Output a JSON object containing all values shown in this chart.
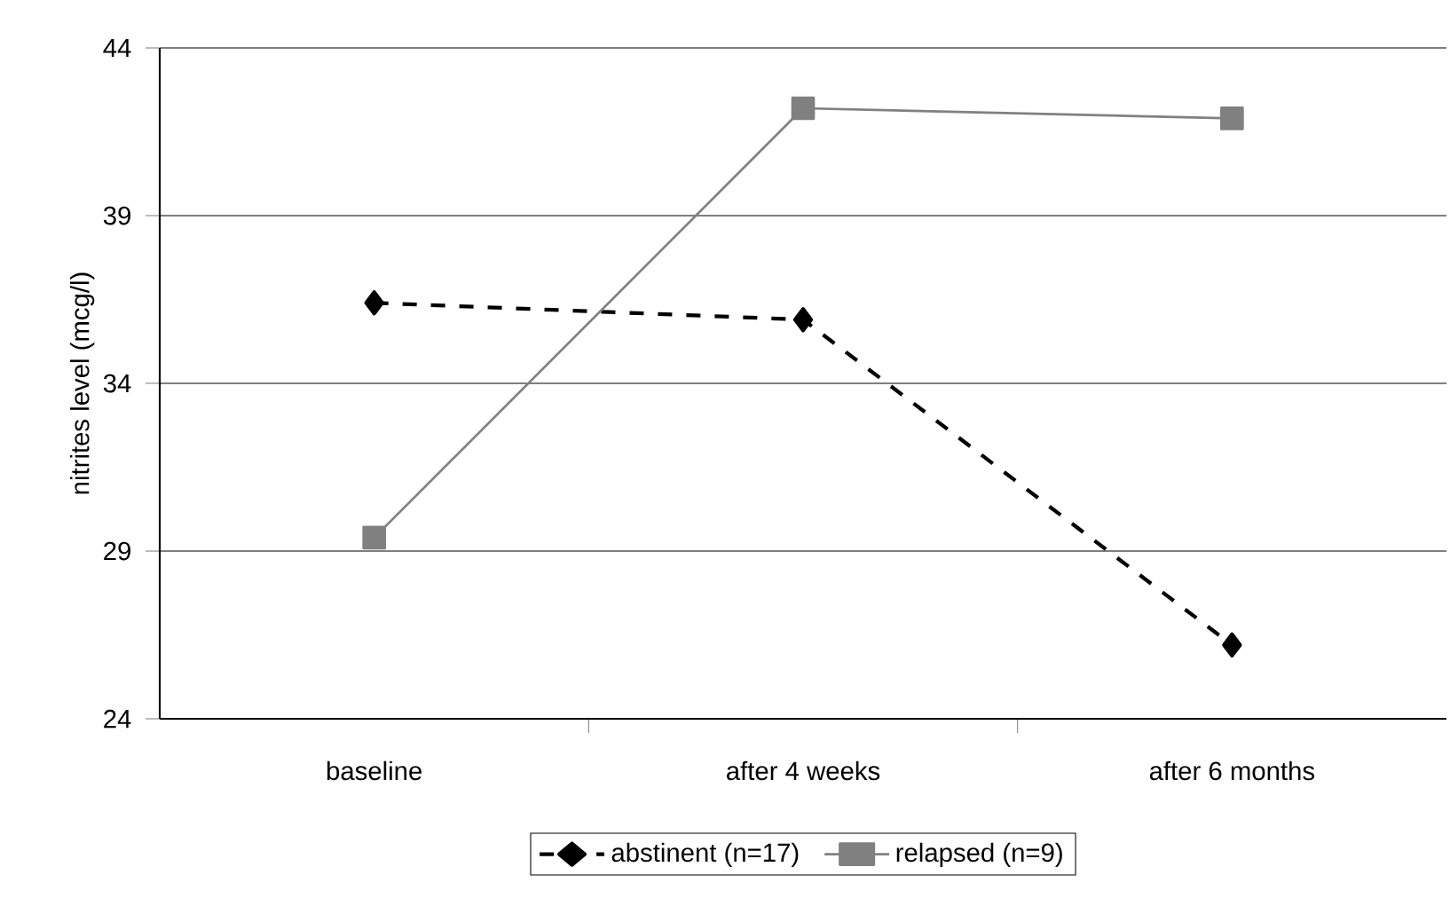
{
  "chart_data": {
    "type": "line",
    "ylabel": "nitrites level (mcg/l)",
    "categories": [
      "baseline",
      "after 4 weeks",
      "after 6 months"
    ],
    "ylim": [
      24,
      44
    ],
    "yticks": [
      24,
      29,
      34,
      39,
      44
    ],
    "grid": "y",
    "legend": "bottom",
    "series": [
      {
        "name": "abstinent (n=17)",
        "color": "#000000",
        "marker": "diamond",
        "line_style": "dashed",
        "values": [
          36.4,
          35.9,
          26.2
        ]
      },
      {
        "name": "relapsed (n=9)",
        "color": "#808080",
        "marker": "square",
        "line_style": "solid",
        "values": [
          29.4,
          42.2,
          41.9
        ]
      }
    ]
  }
}
